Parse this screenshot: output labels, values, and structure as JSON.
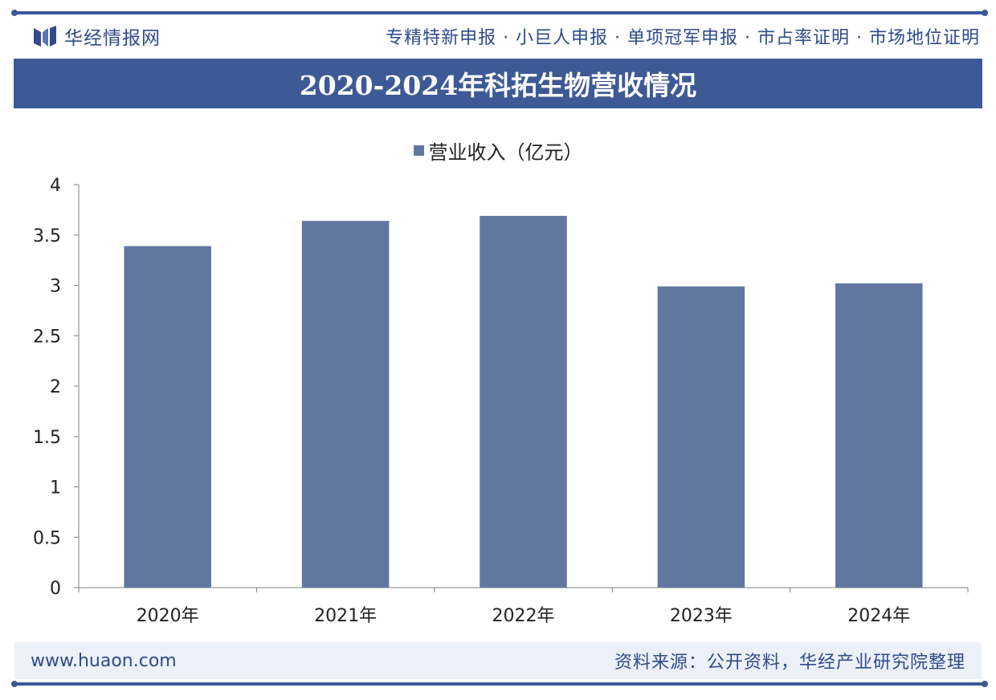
{
  "header": {
    "brand_name": "华经情报网",
    "services": "专精特新申报 · 小巨人申报 · 单项冠军申报 · 市占率证明 · 市场地位证明"
  },
  "title": "2020-2024年科拓生物营收情况",
  "footer": {
    "url": "www.huaon.com",
    "source": "资料来源：公开资料，华经产业研究院整理"
  },
  "colors": {
    "bar": "#61779f",
    "brand": "#3d5a96"
  },
  "chart_data": {
    "type": "bar",
    "title": "2020-2024年科拓生物营收情况",
    "categories": [
      "2020年",
      "2021年",
      "2022年",
      "2023年",
      "2024年"
    ],
    "series": [
      {
        "name": "营业收入（亿元）",
        "values": [
          3.39,
          3.64,
          3.69,
          2.99,
          3.02
        ]
      }
    ],
    "ylim": [
      0,
      4
    ],
    "yticks": [
      0,
      0.5,
      1,
      1.5,
      2,
      2.5,
      3,
      3.5,
      4
    ],
    "ytick_labels": [
      "0",
      "0.5",
      "1",
      "1.5",
      "2",
      "2.5",
      "3",
      "3.5",
      "4"
    ],
    "xlabel": "",
    "ylabel": "",
    "legend_position": "top-center",
    "grid": false
  }
}
